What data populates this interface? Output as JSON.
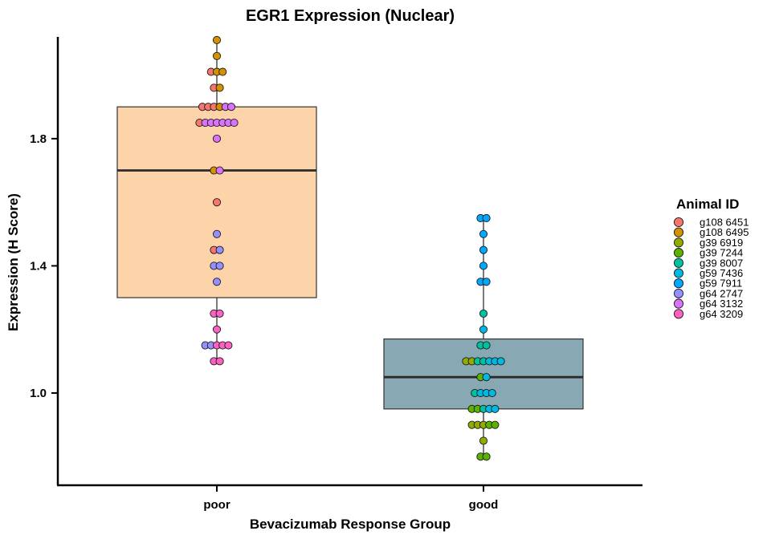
{
  "chart_data": {
    "type": "box",
    "title": "EGR1 Expression (Nuclear)",
    "xlabel": "Bevacizumab Response Group",
    "ylabel": "Expression (H Score)",
    "categories": [
      "poor",
      "good"
    ],
    "yticks": [
      "1.0",
      "1.4",
      "1.8"
    ],
    "ytick_values": [
      1.0,
      1.4,
      1.8
    ],
    "ylim": [
      0.71,
      2.12
    ],
    "legend": {
      "title": "Animal ID",
      "placement": "right",
      "entries": [
        {
          "label": "g108 6451",
          "color": "#f8766d"
        },
        {
          "label": "g108 6495",
          "color": "#d39200"
        },
        {
          "label": "g39 6919",
          "color": "#93aa00"
        },
        {
          "label": "g39 7244",
          "color": "#5bb300"
        },
        {
          "label": "g39 8007",
          "color": "#00c19f"
        },
        {
          "label": "g59 7436",
          "color": "#00b9e3"
        },
        {
          "label": "g59 7911",
          "color": "#00a9ff"
        },
        {
          "label": "g64 2747",
          "color": "#9590ff"
        },
        {
          "label": "g64 3132",
          "color": "#db72fb"
        },
        {
          "label": "g64 3209",
          "color": "#ff61c3"
        }
      ]
    },
    "boxes": [
      {
        "category": "poor",
        "fill": "#fdd3a9",
        "whisker_low": 1.1,
        "q1": 1.3,
        "median": 1.7,
        "q3": 1.9,
        "whisker_high": 2.11,
        "points": [
          {
            "y": 2.11,
            "id": "g108 6495"
          },
          {
            "y": 2.06,
            "id": "g108 6495"
          },
          {
            "y": 2.01,
            "id": "g108 6451"
          },
          {
            "y": 2.01,
            "id": "g108 6495"
          },
          {
            "y": 2.01,
            "id": "g108 6495"
          },
          {
            "y": 1.96,
            "id": "g108 6451"
          },
          {
            "y": 1.96,
            "id": "g108 6495"
          },
          {
            "y": 1.9,
            "id": "g108 6451"
          },
          {
            "y": 1.9,
            "id": "g108 6451"
          },
          {
            "y": 1.9,
            "id": "g108 6451"
          },
          {
            "y": 1.9,
            "id": "g108 6495"
          },
          {
            "y": 1.9,
            "id": "g64 3132"
          },
          {
            "y": 1.9,
            "id": "g64 3132"
          },
          {
            "y": 1.85,
            "id": "g108 6451"
          },
          {
            "y": 1.85,
            "id": "g64 3132"
          },
          {
            "y": 1.85,
            "id": "g64 3132"
          },
          {
            "y": 1.85,
            "id": "g64 3132"
          },
          {
            "y": 1.85,
            "id": "g64 3132"
          },
          {
            "y": 1.85,
            "id": "g64 3132"
          },
          {
            "y": 1.85,
            "id": "g64 3132"
          },
          {
            "y": 1.8,
            "id": "g64 3132"
          },
          {
            "y": 1.7,
            "id": "g108 6495"
          },
          {
            "y": 1.7,
            "id": "g64 3132"
          },
          {
            "y": 1.6,
            "id": "g108 6451"
          },
          {
            "y": 1.5,
            "id": "g64 2747"
          },
          {
            "y": 1.45,
            "id": "g108 6451"
          },
          {
            "y": 1.45,
            "id": "g64 2747"
          },
          {
            "y": 1.4,
            "id": "g64 2747"
          },
          {
            "y": 1.4,
            "id": "g64 2747"
          },
          {
            "y": 1.35,
            "id": "g64 2747"
          },
          {
            "y": 1.25,
            "id": "g64 3209"
          },
          {
            "y": 1.25,
            "id": "g64 3209"
          },
          {
            "y": 1.2,
            "id": "g64 3209"
          },
          {
            "y": 1.15,
            "id": "g64 2747"
          },
          {
            "y": 1.15,
            "id": "g64 2747"
          },
          {
            "y": 1.15,
            "id": "g64 3209"
          },
          {
            "y": 1.15,
            "id": "g64 3209"
          },
          {
            "y": 1.15,
            "id": "g64 3209"
          },
          {
            "y": 1.1,
            "id": "g64 3209"
          },
          {
            "y": 1.1,
            "id": "g64 3209"
          }
        ]
      },
      {
        "category": "good",
        "fill": "#88a8b4",
        "whisker_low": 0.8,
        "q1": 0.95,
        "median": 1.05,
        "q3": 1.17,
        "whisker_high": 1.55,
        "points": [
          {
            "y": 1.55,
            "id": "g59 7911"
          },
          {
            "y": 1.55,
            "id": "g59 7911"
          },
          {
            "y": 1.5,
            "id": "g59 7911"
          },
          {
            "y": 1.45,
            "id": "g59 7911"
          },
          {
            "y": 1.4,
            "id": "g59 7911"
          },
          {
            "y": 1.35,
            "id": "g59 7911"
          },
          {
            "y": 1.35,
            "id": "g59 7911"
          },
          {
            "y": 1.25,
            "id": "g39 8007"
          },
          {
            "y": 1.2,
            "id": "g59 7436"
          },
          {
            "y": 1.15,
            "id": "g39 8007"
          },
          {
            "y": 1.15,
            "id": "g39 8007"
          },
          {
            "y": 1.1,
            "id": "g39 6919"
          },
          {
            "y": 1.1,
            "id": "g39 6919"
          },
          {
            "y": 1.1,
            "id": "g39 8007"
          },
          {
            "y": 1.1,
            "id": "g39 8007"
          },
          {
            "y": 1.1,
            "id": "g59 7436"
          },
          {
            "y": 1.1,
            "id": "g59 7436"
          },
          {
            "y": 1.1,
            "id": "g59 7436"
          },
          {
            "y": 1.05,
            "id": "g39 7244"
          },
          {
            "y": 1.05,
            "id": "g59 7436"
          },
          {
            "y": 1.0,
            "id": "g39 8007"
          },
          {
            "y": 1.0,
            "id": "g59 7436"
          },
          {
            "y": 1.0,
            "id": "g59 7436"
          },
          {
            "y": 1.0,
            "id": "g59 7436"
          },
          {
            "y": 0.95,
            "id": "g39 7244"
          },
          {
            "y": 0.95,
            "id": "g39 7244"
          },
          {
            "y": 0.95,
            "id": "g39 8007"
          },
          {
            "y": 0.95,
            "id": "g59 7436"
          },
          {
            "y": 0.95,
            "id": "g59 7436"
          },
          {
            "y": 0.9,
            "id": "g39 6919"
          },
          {
            "y": 0.9,
            "id": "g39 6919"
          },
          {
            "y": 0.9,
            "id": "g39 6919"
          },
          {
            "y": 0.9,
            "id": "g39 7244"
          },
          {
            "y": 0.9,
            "id": "g39 7244"
          },
          {
            "y": 0.85,
            "id": "g39 6919"
          },
          {
            "y": 0.8,
            "id": "g39 7244"
          },
          {
            "y": 0.8,
            "id": "g39 7244"
          }
        ]
      }
    ],
    "grid": false
  }
}
